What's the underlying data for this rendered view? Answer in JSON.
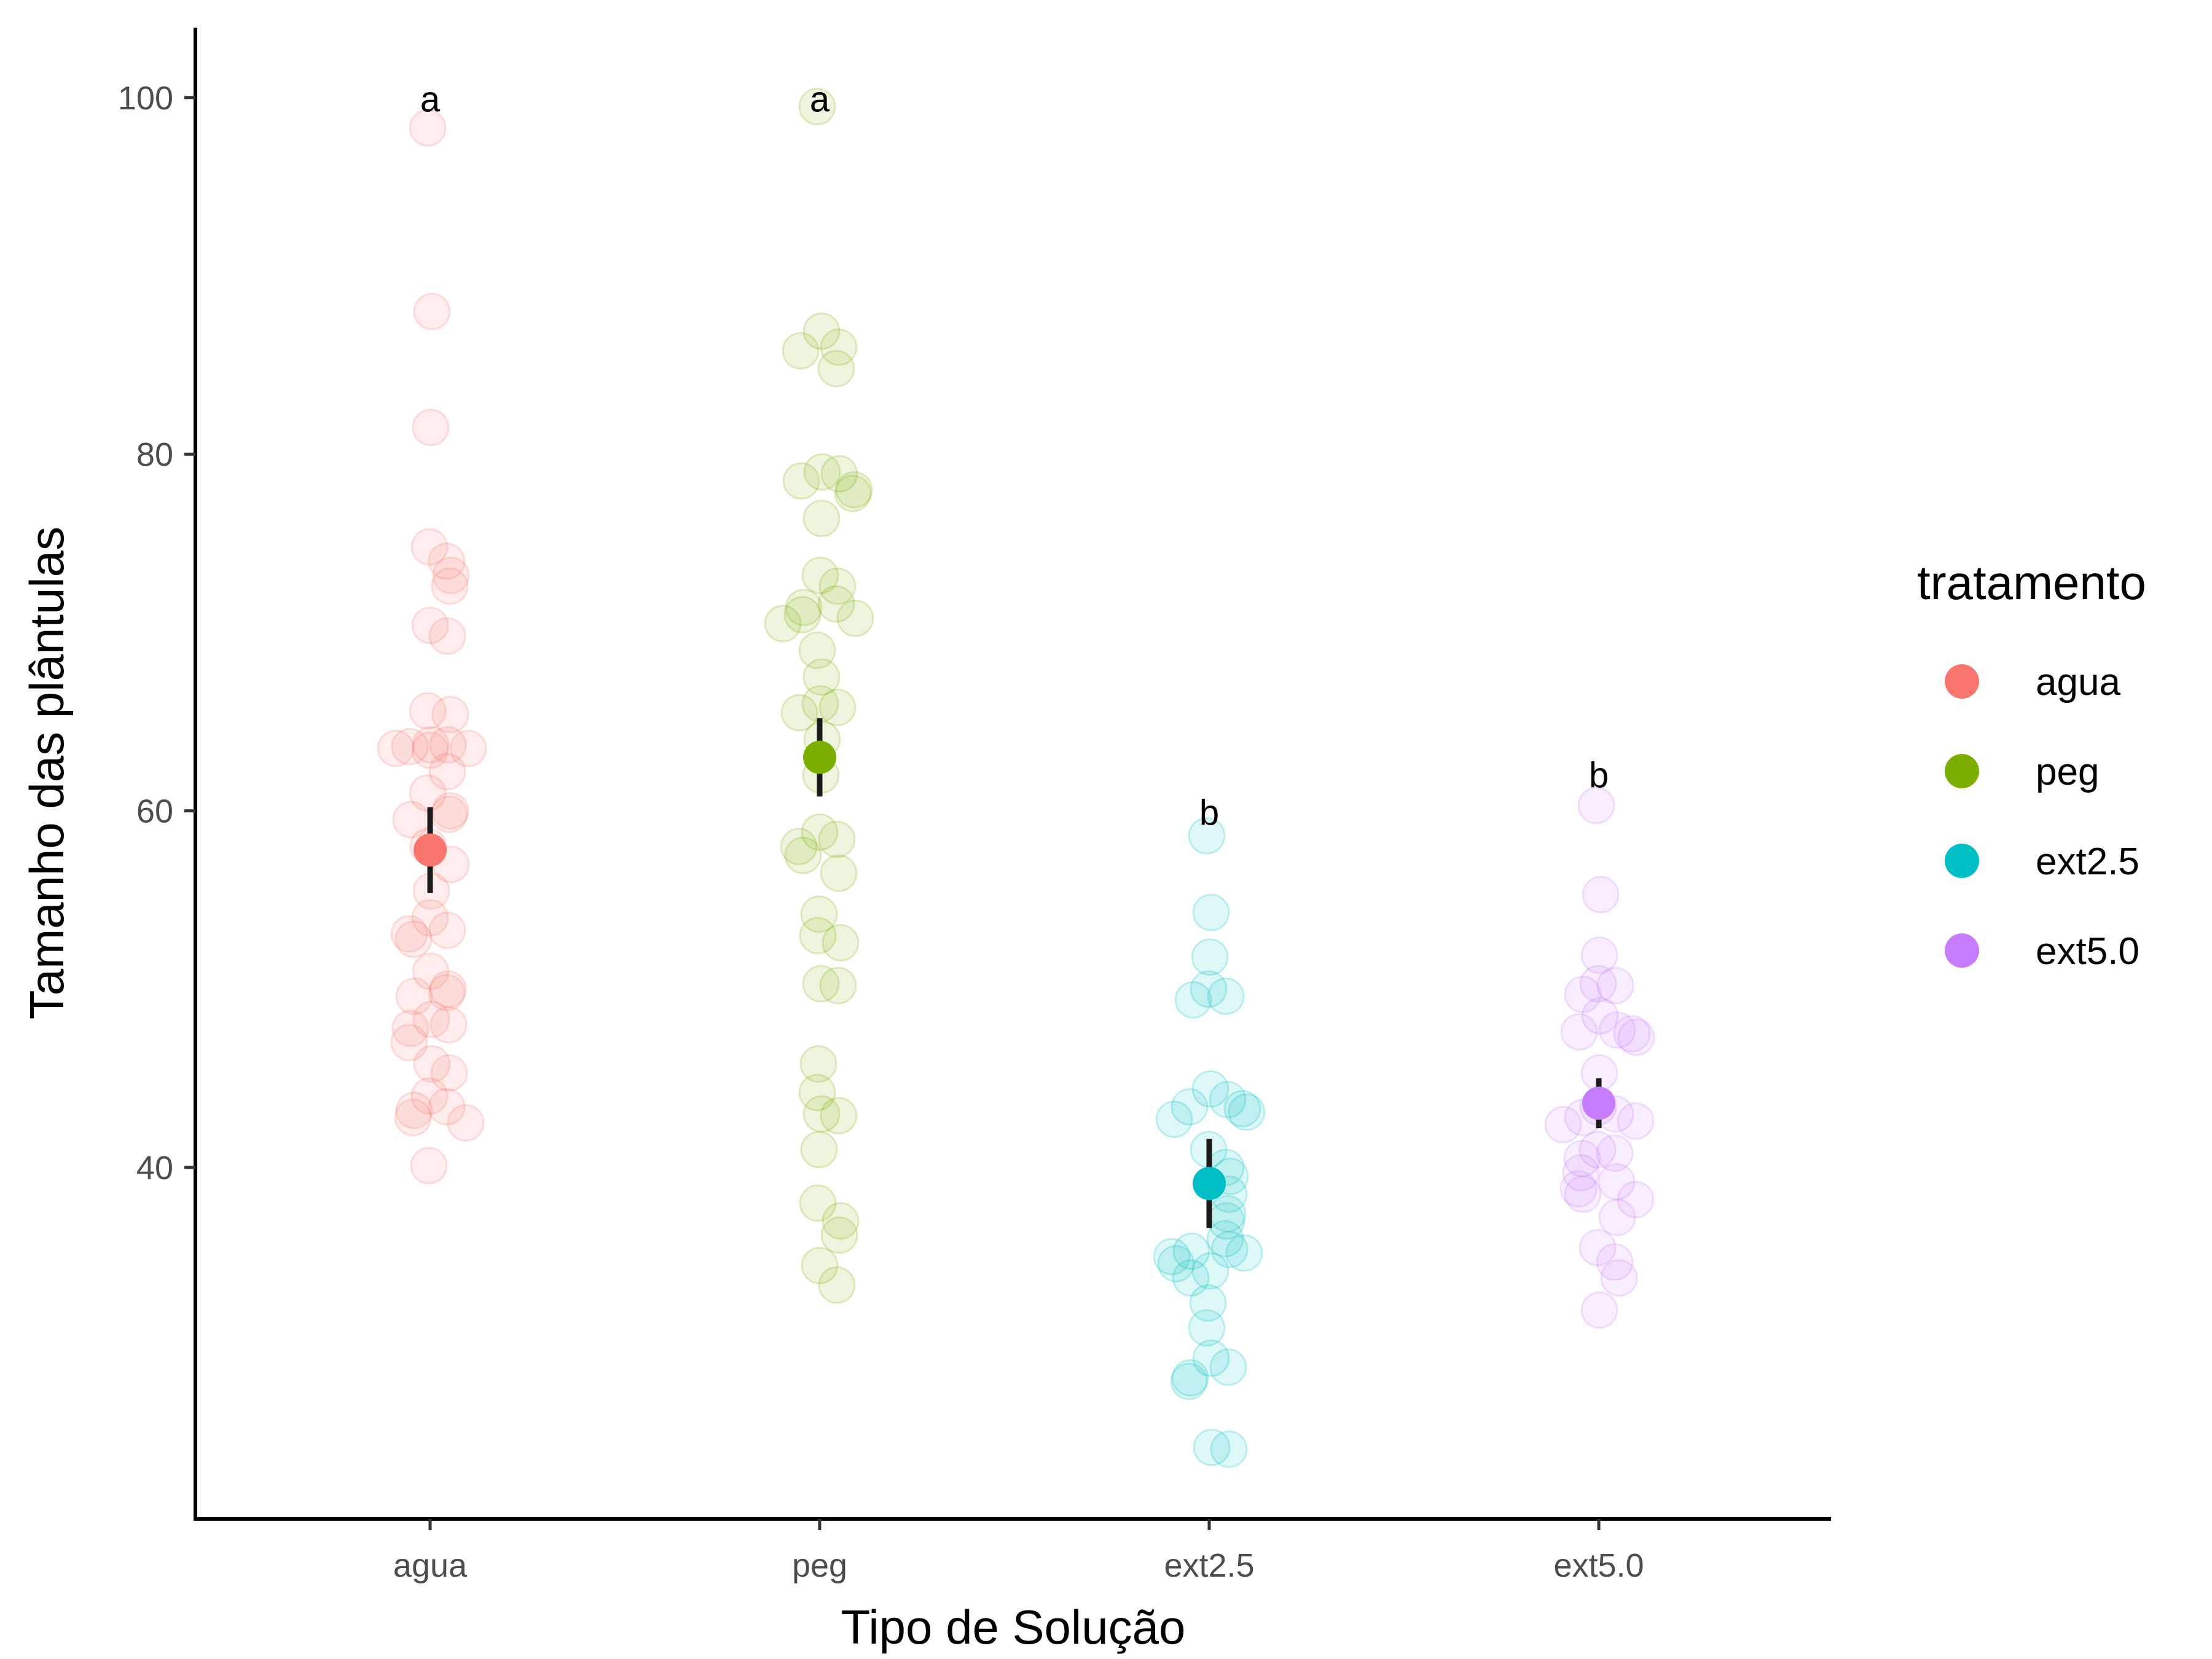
{
  "chart_data": {
    "type": "scatter",
    "xlabel": "Tipo de Solução",
    "ylabel": "Tamanho das plântulas",
    "categories": [
      "agua",
      "peg",
      "ext2.5",
      "ext5.0"
    ],
    "y_ticks": [
      40,
      60,
      80,
      100
    ],
    "ylim": [
      22,
      104
    ],
    "grid": false,
    "legend": {
      "title": "tratamento",
      "position": "right",
      "entries": [
        "agua",
        "peg",
        "ext2.5",
        "ext5.0"
      ]
    },
    "colors": {
      "agua": "#F8766D",
      "peg": "#7CAE00",
      "ext2.5": "#00BFC4",
      "ext5.0": "#C77CFF"
    },
    "series": [
      {
        "category": "agua",
        "mean": 57.8,
        "ci": [
          55.4,
          60.2
        ],
        "letter": "a",
        "letter_y": 99.9,
        "points": [
          98.3,
          88.0,
          81.5,
          74.8,
          74.0,
          73.2,
          72.6,
          70.4,
          69.8,
          65.6,
          65.4,
          63.7,
          63.7,
          63.6,
          63.5,
          63.5,
          63.4,
          62.2,
          61.0,
          60.0,
          59.8,
          59.5,
          58.0,
          57.0,
          55.5,
          54.0,
          53.3,
          53.1,
          52.8,
          51.0,
          50.0,
          49.8,
          49.6,
          48.3,
          48.0,
          47.8,
          47.0,
          45.8,
          45.3,
          44.0,
          43.4,
          43.2,
          42.8,
          42.5,
          40.1
        ]
      },
      {
        "category": "peg",
        "mean": 63.0,
        "ci": [
          60.8,
          65.2
        ],
        "letter": "a",
        "letter_y": 99.9,
        "points": [
          99.5,
          86.9,
          86.0,
          85.8,
          84.8,
          79.0,
          78.9,
          78.5,
          78.0,
          77.8,
          76.4,
          73.2,
          72.6,
          71.6,
          71.4,
          71.0,
          70.8,
          70.5,
          69.0,
          67.5,
          66.0,
          65.8,
          65.5,
          64.0,
          62.0,
          58.8,
          58.4,
          58.0,
          57.5,
          56.5,
          54.2,
          53.0,
          52.6,
          50.3,
          50.2,
          45.8,
          44.2,
          43.0,
          42.9,
          41.0,
          38.0,
          37.0,
          36.2,
          34.5,
          33.4
        ]
      },
      {
        "category": "ext2.5",
        "mean": 39.1,
        "ci": [
          36.6,
          41.6
        ],
        "letter": "b",
        "letter_y": 59.9,
        "points": [
          58.6,
          54.3,
          51.8,
          50.0,
          49.6,
          49.4,
          44.4,
          43.8,
          43.4,
          43.3,
          43.1,
          42.7,
          41.0,
          40.0,
          39.5,
          38.5,
          37.4,
          37.0,
          36.0,
          35.4,
          35.3,
          35.2,
          35.0,
          34.6,
          34.2,
          33.8,
          32.4,
          31.0,
          29.3,
          28.8,
          28.2,
          28.0,
          24.3,
          24.2
        ]
      },
      {
        "category": "ext5.0",
        "mean": 43.6,
        "ci": [
          42.2,
          45.0
        ],
        "letter": "b",
        "letter_y": 62.0,
        "points": [
          60.3,
          55.3,
          51.9,
          50.3,
          50.2,
          49.7,
          48.5,
          47.7,
          47.6,
          47.5,
          47.3,
          45.3,
          43.4,
          43.0,
          42.8,
          42.6,
          42.4,
          41.0,
          40.8,
          40.5,
          39.7,
          39.2,
          38.8,
          38.5,
          38.2,
          37.2,
          35.5,
          34.7,
          33.8,
          32.0
        ]
      }
    ]
  }
}
